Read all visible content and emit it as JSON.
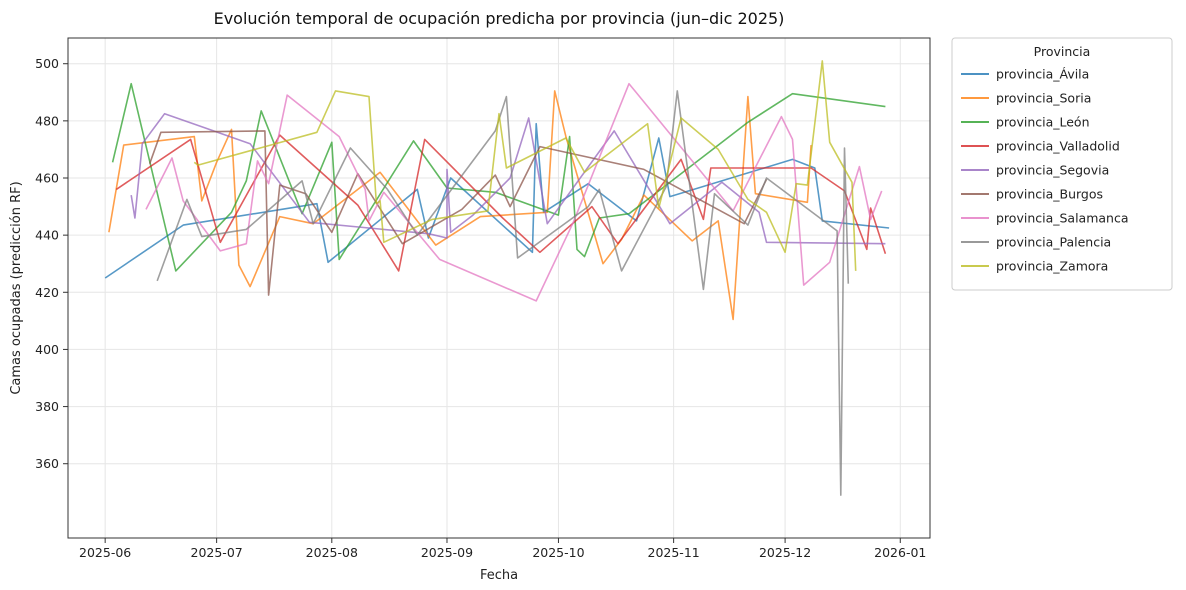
{
  "chart_data": {
    "type": "line",
    "title": "Evolución temporal de ocupación predicha por provincia (jun–dic 2025)",
    "xlabel": "Fecha",
    "ylabel": "Camas ocupadas (predicción RF)",
    "xlim": [
      "2025-05-22",
      "2026-01-09"
    ],
    "ylim": [
      334,
      509
    ],
    "x_ticks": [
      "2025-06-01",
      "2025-07-01",
      "2025-08-01",
      "2025-09-01",
      "2025-10-01",
      "2025-11-01",
      "2025-12-01",
      "2026-01-01"
    ],
    "x_tick_labels": [
      "2025-06",
      "2025-07",
      "2025-08",
      "2025-09",
      "2025-10",
      "2025-11",
      "2025-12",
      "2026-01"
    ],
    "y_ticks": [
      360,
      380,
      400,
      420,
      440,
      460,
      480,
      500
    ],
    "grid": true,
    "legend_title": "Provincia",
    "legend_position": "outside right, top",
    "series": [
      {
        "name": "provincia_Ávila",
        "color": "#1f77b4",
        "points": [
          [
            "2025-06-01",
            425
          ],
          [
            "2025-06-22",
            443.5
          ],
          [
            "2025-07-28",
            451
          ],
          [
            "2025-07-31",
            430.5
          ],
          [
            "2025-08-24",
            456
          ],
          [
            "2025-08-27",
            439
          ],
          [
            "2025-09-02",
            460
          ],
          [
            "2025-09-24",
            434
          ],
          [
            "2025-09-25",
            479
          ],
          [
            "2025-09-27",
            448
          ],
          [
            "2025-10-09",
            458
          ],
          [
            "2025-10-22",
            445
          ],
          [
            "2025-10-28",
            474
          ],
          [
            "2025-10-31",
            453.5
          ],
          [
            "2025-12-03",
            466.5
          ],
          [
            "2025-12-09",
            463.5
          ],
          [
            "2025-12-11",
            445
          ],
          [
            "2025-12-29",
            442.5
          ]
        ]
      },
      {
        "name": "provincia_Soria",
        "color": "#ff7f0e",
        "points": [
          [
            "2025-06-02",
            441
          ],
          [
            "2025-06-06",
            471.5
          ],
          [
            "2025-06-25",
            474.5
          ],
          [
            "2025-06-27",
            452
          ],
          [
            "2025-07-01",
            465.5
          ],
          [
            "2025-07-05",
            477
          ],
          [
            "2025-07-07",
            429.5
          ],
          [
            "2025-07-10",
            422
          ],
          [
            "2025-07-18",
            446.5
          ],
          [
            "2025-07-27",
            444
          ],
          [
            "2025-08-14",
            462
          ],
          [
            "2025-08-29",
            436.5
          ],
          [
            "2025-09-10",
            446.5
          ],
          [
            "2025-09-28",
            448
          ],
          [
            "2025-09-30",
            490.5
          ],
          [
            "2025-10-03",
            474.5
          ],
          [
            "2025-10-13",
            430
          ],
          [
            "2025-10-18",
            438.5
          ],
          [
            "2025-10-24",
            454
          ],
          [
            "2025-11-06",
            438
          ],
          [
            "2025-11-13",
            445
          ],
          [
            "2025-11-17",
            410.5
          ],
          [
            "2025-11-21",
            488.5
          ],
          [
            "2025-11-23",
            454.5
          ],
          [
            "2025-12-07",
            451.5
          ],
          [
            "2025-12-08",
            471.5
          ]
        ]
      },
      {
        "name": "provincia_León",
        "color": "#2ca02c",
        "points": [
          [
            "2025-06-03",
            465.5
          ],
          [
            "2025-06-08",
            493
          ],
          [
            "2025-06-20",
            427.5
          ],
          [
            "2025-07-05",
            448
          ],
          [
            "2025-07-09",
            459
          ],
          [
            "2025-07-13",
            483.5
          ],
          [
            "2025-07-24",
            447.5
          ],
          [
            "2025-08-01",
            472.5
          ],
          [
            "2025-08-03",
            431.5
          ],
          [
            "2025-08-23",
            473
          ],
          [
            "2025-09-01",
            456.5
          ],
          [
            "2025-09-14",
            455
          ],
          [
            "2025-10-01",
            447
          ],
          [
            "2025-10-04",
            474.5
          ],
          [
            "2025-10-06",
            435
          ],
          [
            "2025-10-08",
            432.5
          ],
          [
            "2025-10-12",
            446
          ],
          [
            "2025-10-20",
            447.5
          ],
          [
            "2025-11-21",
            479.5
          ],
          [
            "2025-12-03",
            489.5
          ],
          [
            "2025-12-28",
            485
          ]
        ]
      },
      {
        "name": "provincia_Valladolid",
        "color": "#d62728",
        "points": [
          [
            "2025-06-04",
            456
          ],
          [
            "2025-06-24",
            473.5
          ],
          [
            "2025-07-02",
            437.5
          ],
          [
            "2025-07-18",
            475
          ],
          [
            "2025-08-08",
            450.5
          ],
          [
            "2025-08-19",
            427.5
          ],
          [
            "2025-08-26",
            473.5
          ],
          [
            "2025-09-16",
            446
          ],
          [
            "2025-09-26",
            434
          ],
          [
            "2025-10-10",
            450
          ],
          [
            "2025-10-17",
            437
          ],
          [
            "2025-11-03",
            466.5
          ],
          [
            "2025-11-09",
            445.5
          ],
          [
            "2025-11-11",
            463.5
          ],
          [
            "2025-12-08",
            463.5
          ],
          [
            "2025-12-17",
            455.5
          ],
          [
            "2025-12-23",
            435
          ],
          [
            "2025-12-24",
            449.5
          ],
          [
            "2025-12-28",
            433.5
          ]
        ]
      },
      {
        "name": "provincia_Segovia",
        "color": "#9467bd",
        "points": [
          [
            "2025-06-08",
            454
          ],
          [
            "2025-06-09",
            446
          ],
          [
            "2025-06-11",
            472
          ],
          [
            "2025-06-17",
            482.5
          ],
          [
            "2025-07-10",
            472
          ],
          [
            "2025-07-26",
            444.5
          ],
          [
            "2025-08-27",
            440.5
          ],
          [
            "2025-09-01",
            439
          ],
          [
            "2025-09-01",
            463
          ],
          [
            "2025-09-02",
            441
          ],
          [
            "2025-09-08",
            447
          ],
          [
            "2025-09-18",
            460
          ],
          [
            "2025-09-23",
            481
          ],
          [
            "2025-09-28",
            444
          ],
          [
            "2025-10-16",
            476.5
          ],
          [
            "2025-10-31",
            444
          ],
          [
            "2025-11-14",
            458.5
          ],
          [
            "2025-11-24",
            448
          ],
          [
            "2025-11-26",
            437.5
          ],
          [
            "2025-12-28",
            437
          ]
        ]
      },
      {
        "name": "provincia_Burgos",
        "color": "#8c564b",
        "points": [
          [
            "2025-06-13",
            465
          ],
          [
            "2025-06-16",
            476
          ],
          [
            "2025-07-14",
            476.5
          ],
          [
            "2025-07-15",
            419
          ],
          [
            "2025-07-18",
            457.5
          ],
          [
            "2025-07-25",
            454.5
          ],
          [
            "2025-08-01",
            441
          ],
          [
            "2025-08-08",
            461.5
          ],
          [
            "2025-08-20",
            437
          ],
          [
            "2025-09-05",
            449
          ],
          [
            "2025-09-14",
            461
          ],
          [
            "2025-09-18",
            450
          ],
          [
            "2025-09-26",
            471
          ],
          [
            "2025-10-24",
            463
          ],
          [
            "2025-11-20",
            444
          ],
          [
            "2025-11-26",
            459.5
          ]
        ]
      },
      {
        "name": "provincia_Salamanca",
        "color": "#e377c2",
        "points": [
          [
            "2025-06-12",
            449
          ],
          [
            "2025-06-19",
            467
          ],
          [
            "2025-06-22",
            452
          ],
          [
            "2025-07-02",
            434.5
          ],
          [
            "2025-07-09",
            437
          ],
          [
            "2025-07-12",
            466
          ],
          [
            "2025-07-15",
            458
          ],
          [
            "2025-07-20",
            489
          ],
          [
            "2025-08-03",
            474.5
          ],
          [
            "2025-08-10",
            456
          ],
          [
            "2025-08-11",
            445
          ],
          [
            "2025-08-15",
            455
          ],
          [
            "2025-08-30",
            431.5
          ],
          [
            "2025-09-25",
            417
          ],
          [
            "2025-10-05",
            444.5
          ],
          [
            "2025-10-20",
            493
          ],
          [
            "2025-11-17",
            448.5
          ],
          [
            "2025-11-30",
            481.5
          ],
          [
            "2025-12-03",
            473.5
          ],
          [
            "2025-12-06",
            422.5
          ],
          [
            "2025-12-13",
            430.5
          ],
          [
            "2025-12-21",
            464
          ],
          [
            "2025-12-24",
            445.5
          ],
          [
            "2025-12-27",
            455.5
          ]
        ]
      },
      {
        "name": "provincia_Palencia",
        "color": "#7f7f7f",
        "points": [
          [
            "2025-06-15",
            424
          ],
          [
            "2025-06-23",
            452.5
          ],
          [
            "2025-06-27",
            439.5
          ],
          [
            "2025-07-09",
            442
          ],
          [
            "2025-07-24",
            459
          ],
          [
            "2025-07-27",
            444
          ],
          [
            "2025-08-06",
            470.5
          ],
          [
            "2025-08-16",
            456
          ],
          [
            "2025-08-24",
            440
          ],
          [
            "2025-09-14",
            476.5
          ],
          [
            "2025-09-17",
            488.5
          ],
          [
            "2025-09-20",
            432
          ],
          [
            "2025-10-09",
            450
          ],
          [
            "2025-10-12",
            456
          ],
          [
            "2025-10-18",
            427.5
          ],
          [
            "2025-10-30",
            457
          ],
          [
            "2025-11-02",
            490.5
          ],
          [
            "2025-11-09",
            421
          ],
          [
            "2025-11-12",
            454.5
          ],
          [
            "2025-11-21",
            443.5
          ],
          [
            "2025-11-26",
            460
          ],
          [
            "2025-12-15",
            441.5
          ],
          [
            "2025-12-16",
            349
          ],
          [
            "2025-12-17",
            470.5
          ],
          [
            "2025-12-18",
            423
          ]
        ]
      },
      {
        "name": "provincia_Zamora",
        "color": "#bcbd22",
        "points": [
          [
            "2025-06-25",
            465.5
          ],
          [
            "2025-06-26",
            464.5
          ],
          [
            "2025-07-28",
            476
          ],
          [
            "2025-08-02",
            490.5
          ],
          [
            "2025-08-11",
            488.5
          ],
          [
            "2025-08-13",
            451
          ],
          [
            "2025-08-14",
            452
          ],
          [
            "2025-08-15",
            437.5
          ],
          [
            "2025-08-28",
            445.5
          ],
          [
            "2025-09-12",
            448.5
          ],
          [
            "2025-09-15",
            482.5
          ],
          [
            "2025-09-17",
            463.5
          ],
          [
            "2025-10-03",
            474
          ],
          [
            "2025-10-08",
            462
          ],
          [
            "2025-10-25",
            479
          ],
          [
            "2025-10-28",
            449.5
          ],
          [
            "2025-11-03",
            481
          ],
          [
            "2025-11-13",
            470
          ],
          [
            "2025-11-21",
            452.5
          ],
          [
            "2025-11-26",
            448
          ],
          [
            "2025-12-01",
            434
          ],
          [
            "2025-12-04",
            458
          ],
          [
            "2025-12-07",
            457.5
          ],
          [
            "2025-12-11",
            501
          ],
          [
            "2025-12-13",
            472.5
          ],
          [
            "2025-12-19",
            458.5
          ],
          [
            "2025-12-20",
            427.5
          ]
        ]
      }
    ]
  }
}
